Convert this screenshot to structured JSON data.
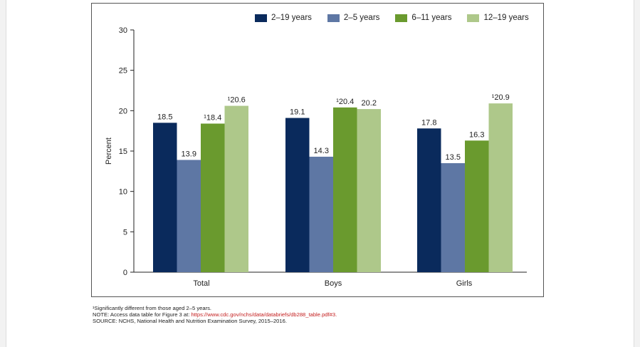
{
  "chart_data": {
    "type": "bar",
    "categories": [
      "Total",
      "Boys",
      "Girls"
    ],
    "series": [
      {
        "name": "2–19 years",
        "color": "#0a2a5c",
        "values": [
          18.5,
          19.1,
          17.8
        ],
        "labels": [
          "18.5",
          "19.1",
          "17.8"
        ]
      },
      {
        "name": "2–5 years",
        "color": "#5e77a4",
        "values": [
          13.9,
          14.3,
          13.5
        ],
        "labels": [
          "13.9",
          "14.3",
          "13.5"
        ]
      },
      {
        "name": "6–11 years",
        "color": "#6a9a2e",
        "values": [
          18.4,
          20.4,
          16.3
        ],
        "labels": [
          "¹18.4",
          "¹20.4",
          "16.3"
        ]
      },
      {
        "name": "12–19 years",
        "color": "#aec88a",
        "values": [
          20.6,
          20.2,
          20.9
        ],
        "labels": [
          "¹20.6",
          "20.2",
          "¹20.9"
        ]
      }
    ],
    "ylabel": "Percent",
    "xlabel": "",
    "ylim": [
      0,
      30
    ],
    "yticks": [
      0,
      5,
      10,
      15,
      20,
      25,
      30
    ],
    "legend_position": "top-right"
  },
  "footnotes": {
    "significance": "¹Significantly different from those aged 2–5 years.",
    "note_prefix": "NOTE: Access data table for Figure 3 at: ",
    "note_link": "https://www.cdc.gov/nchs/data/databriefs/db288_table.pdf#3.",
    "source": "SOURCE: NCHS, National Health and Nutrition Examination Survey, 2015–2016."
  }
}
